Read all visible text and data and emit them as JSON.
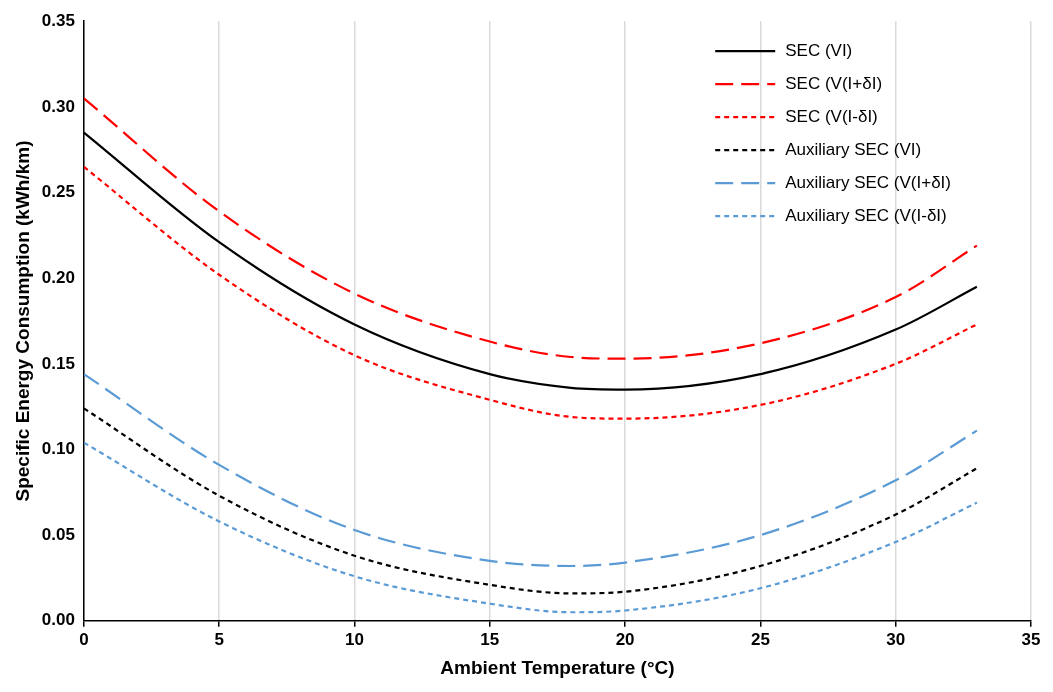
{
  "chart_data": {
    "type": "line",
    "xlabel": "Ambient Temperature (°C)",
    "ylabel": "Specific Energy Consumption (kWh/km)",
    "x": [
      0,
      5,
      10,
      15,
      18,
      20,
      25,
      30,
      33
    ],
    "xlim": [
      0,
      35
    ],
    "xticks": [
      0,
      5,
      10,
      15,
      20,
      25,
      30,
      35
    ],
    "ylim": [
      0,
      0.35
    ],
    "yticks": [
      {
        "value": 0,
        "label": "0.00"
      },
      {
        "value": 0.05,
        "label": "0.05"
      },
      {
        "value": 0.1,
        "label": "0.10"
      },
      {
        "value": 0.15,
        "label": "0.15"
      },
      {
        "value": 0.2,
        "label": "0.20"
      },
      {
        "value": 0.25,
        "label": "0.25"
      },
      {
        "value": 0.3,
        "label": "0.30"
      },
      {
        "value": 0.35,
        "label": "0.35"
      }
    ],
    "grid": "x",
    "legend": "top right",
    "marker": "none",
    "series": [
      {
        "name": "SEC (VI)",
        "color": "#000000",
        "line_style": "solid",
        "values": [
          0.285,
          0.221,
          0.173,
          0.144,
          0.136,
          0.135,
          0.144,
          0.17,
          0.195
        ]
      },
      {
        "name": "SEC (V(I+δI)",
        "color": "#ff0000",
        "line_style": "dashed",
        "values": [
          0.305,
          0.239,
          0.191,
          0.163,
          0.154,
          0.153,
          0.162,
          0.189,
          0.219
        ]
      },
      {
        "name": "SEC (V(I-δI)",
        "color": "#ff0000",
        "line_style": "dotted",
        "values": [
          0.265,
          0.202,
          0.155,
          0.129,
          0.119,
          0.118,
          0.126,
          0.15,
          0.173
        ]
      },
      {
        "name": "Auxiliary SEC (VI)",
        "color": "#000000",
        "line_style": "dotted",
        "values": [
          0.124,
          0.073,
          0.038,
          0.021,
          0.016,
          0.017,
          0.032,
          0.062,
          0.089
        ]
      },
      {
        "name": "Auxiliary SEC (V(I+δI)",
        "color": "#5b9bd5",
        "line_style": "dashed",
        "values": [
          0.144,
          0.091,
          0.053,
          0.035,
          0.032,
          0.034,
          0.05,
          0.082,
          0.111
        ]
      },
      {
        "name": "Auxiliary SEC (V(I-δI)",
        "color": "#5b9bd5",
        "line_style": "dotted",
        "values": [
          0.104,
          0.058,
          0.026,
          0.01,
          0.005,
          0.006,
          0.019,
          0.046,
          0.069
        ]
      }
    ]
  }
}
